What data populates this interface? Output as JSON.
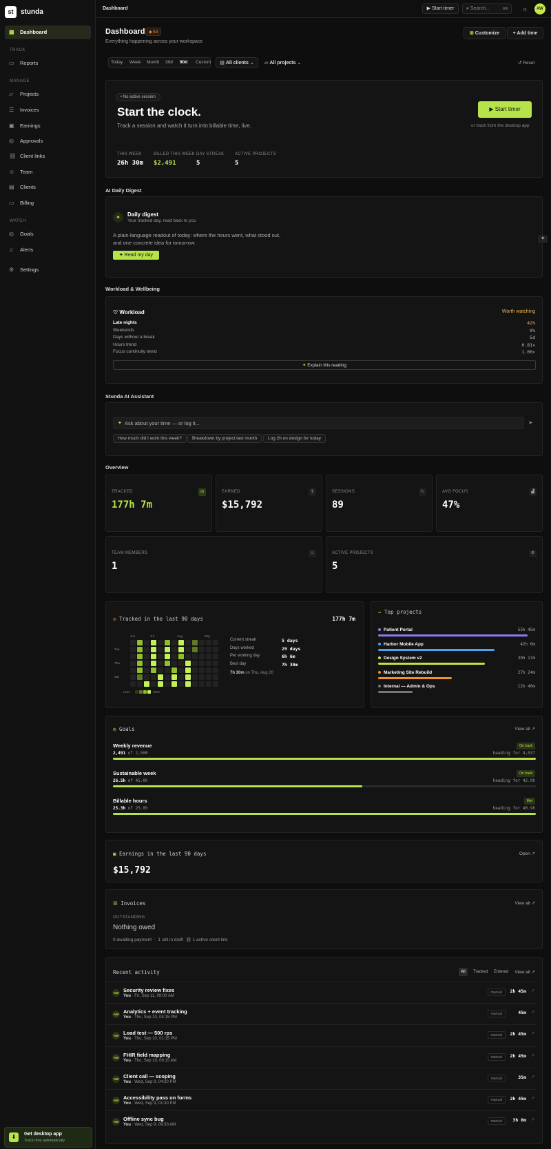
{
  "app": {
    "logo": "st",
    "name": "stunda"
  },
  "sidebar": {
    "dashboard": "Dashboard",
    "track_label": "TRACK",
    "reports": "Reports",
    "manage_label": "MANAGE",
    "projects": "Projects",
    "invoices": "Invoices",
    "earnings": "Earnings",
    "approvals": "Approvals",
    "client_links": "Client links",
    "team": "Team",
    "clients": "Clients",
    "billing": "Billing",
    "watch_label": "WATCH",
    "goals": "Goals",
    "alerts": "Alerts",
    "settings": "Settings",
    "desktop_title": "Get desktop app",
    "desktop_sub": "Track time automatically"
  },
  "topbar": {
    "crumb": "Dashboard",
    "start_timer": "Start timer",
    "search_placeholder": "Search...",
    "shortcut": "⌘K",
    "avatar": "AW"
  },
  "header": {
    "title": "Dashboard",
    "streak_badge": "5d",
    "subtitle": "Everything happening across your workspace",
    "customize": "Customize",
    "add_time": "Add time"
  },
  "filters": {
    "ranges": [
      "Today",
      "Week",
      "Month",
      "30d",
      "90d",
      "Custom"
    ],
    "active": "90d",
    "clients": "All clients",
    "projects": "All projects",
    "reset": "Reset"
  },
  "hero": {
    "badge": "No active session",
    "title": "Start the clock.",
    "desc": "Track a session and watch it turn into billable time, live.",
    "cta": "Start timer",
    "alt": "or track from the desktop app",
    "stats": [
      {
        "label": "THIS WEEK",
        "value": "26h 30m"
      },
      {
        "label": "BILLED THIS WEEK",
        "value": "$2,491"
      },
      {
        "label": "DAY STREAK",
        "value": "5"
      },
      {
        "label": "ACTIVE PROJECTS",
        "value": "5"
      }
    ]
  },
  "digest": {
    "section": "AI Daily Digest",
    "title": "Daily digest",
    "sub": "Your tracked day, read back to you",
    "desc": "A plain-language readout of today: where the hours went, what stood out, and one concrete idea for tomorrow.",
    "cta": "Read my day"
  },
  "wellbeing": {
    "section": "Workload & Wellbeing",
    "title": "Workload",
    "status": "Worth watching",
    "rows": [
      {
        "label": "Late nights",
        "value": "42%"
      },
      {
        "label": "Weekends",
        "value": "0%"
      },
      {
        "label": "Days without a break",
        "value": "5d"
      },
      {
        "label": "Hours trend",
        "value": "0.81×"
      },
      {
        "label": "Focus continuity trend",
        "value": "1.00×"
      }
    ],
    "explain": "Explain this reading"
  },
  "assistant": {
    "section": "Stunda AI Assistant",
    "placeholder": "Ask about your time — or log it...",
    "chips": [
      "How much did I work this week?",
      "Breakdown by project last month",
      "Log 2h on design for today"
    ]
  },
  "overview": {
    "section": "Overview",
    "stats": [
      {
        "label": "TRACKED",
        "value": "177h 7m",
        "icon": "clock-icon"
      },
      {
        "label": "EARNED",
        "value": "$15,792",
        "icon": "dollar-icon"
      },
      {
        "label": "SESSIONS",
        "value": "89",
        "icon": "refresh-icon"
      },
      {
        "label": "AVG FOCUS",
        "value": "47%",
        "icon": "signal-icon"
      },
      {
        "label": "TEAM MEMBERS",
        "value": "1",
        "icon": "users-icon"
      },
      {
        "label": "ACTIVE PROJECTS",
        "value": "5",
        "icon": "gear-icon"
      }
    ]
  },
  "tracked": {
    "title": "Tracked in the last 90 days",
    "total": "177h 7m",
    "months": [
      "Jun",
      "Jul",
      "Aug",
      "Sep"
    ],
    "days": [
      "Tue",
      "Thu",
      "Sat"
    ],
    "less": "Less",
    "more": "More",
    "stats": [
      {
        "label": "Current streak",
        "value": "5 days"
      },
      {
        "label": "Days worked",
        "value": "29 days"
      },
      {
        "label": "Per working day",
        "value": "6h 6m"
      },
      {
        "label": "Best day",
        "value": "7h 30m"
      }
    ],
    "best_value": "7h 30m",
    "best_date": "on Thu, Aug 20",
    "cells": [
      0,
      0,
      0,
      0,
      0,
      0,
      0,
      3,
      3,
      3,
      3,
      3,
      2,
      0,
      0,
      0,
      0,
      0,
      0,
      0,
      4,
      4,
      4,
      4,
      4,
      3,
      0,
      0,
      0,
      0,
      0,
      0,
      0,
      4,
      4,
      3,
      4,
      4,
      3,
      0,
      0,
      0,
      0,
      0,
      0,
      0,
      3,
      4,
      4,
      4,
      4,
      3,
      0,
      0,
      0,
      0,
      0,
      0,
      0,
      4,
      4,
      4,
      4,
      2,
      2,
      0,
      0,
      0,
      0,
      0,
      0,
      0,
      0,
      0,
      0,
      0,
      0,
      0,
      0,
      0,
      0,
      0,
      0,
      0,
      0,
      0,
      0,
      0,
      0,
      0,
      0,
      0,
      0,
      0,
      0,
      0,
      0,
      0,
      0,
      0,
      0,
      0,
      0,
      0,
      0,
      0,
      0,
      0,
      0,
      0,
      0,
      0,
      0,
      0,
      0,
      0,
      0,
      0,
      0,
      0,
      0,
      0,
      0,
      0,
      0,
      0,
      0,
      0,
      0,
      0,
      0,
      0,
      0
    ]
  },
  "top_projects": {
    "title": "Top projects",
    "items": [
      {
        "name": "Patient Portal",
        "hours": "55h 45m",
        "color": "#8b7cf6",
        "share": 0.95
      },
      {
        "name": "Harbor Mobile App",
        "hours": "42h 0m",
        "color": "#4aa3f0",
        "share": 0.74
      },
      {
        "name": "Design System v2",
        "hours": "39h 17m",
        "color": "#c8e03f",
        "share": 0.68
      },
      {
        "name": "Marketing Site Rebuild",
        "hours": "27h 24m",
        "color": "#f0902d",
        "share": 0.47
      },
      {
        "name": "Internal — Admin & Ops",
        "hours": "12h 40m",
        "color": "#777777",
        "share": 0.22
      }
    ]
  },
  "goals": {
    "title": "Goals",
    "view_all": "View all ↗",
    "items": [
      {
        "name": "Weekly revenue",
        "status": "On track",
        "current": "2,491",
        "target": "of 2,500",
        "heading": "heading for 4,037",
        "fill": 1.0
      },
      {
        "name": "Sustainable week",
        "status": "On track",
        "current": "26.5h",
        "target": "of 45.0h",
        "heading": "heading for 42.9h",
        "fill": 0.59
      },
      {
        "name": "Billable hours",
        "status": "Met",
        "current": "25.3h",
        "target": "of 25.0h",
        "heading": "heading for 40.9h",
        "fill": 1.0
      }
    ]
  },
  "earnings": {
    "title": "Earnings in the last 90 days",
    "open": "Open ↗",
    "value": "$15,792"
  },
  "invoices": {
    "title": "Invoices",
    "view_all": "View all ↗",
    "outstanding_label": "OUTSTANDING",
    "outstanding": "Nothing owed",
    "meta1": "0 awaiting payment",
    "meta2": "1 still in draft",
    "meta3": "1 active client link"
  },
  "activity": {
    "title": "Recent activity",
    "tabs": [
      "All",
      "Tracked",
      "Entered"
    ],
    "view_all": "View all ↗",
    "items": [
      {
        "title": "Security review fixes",
        "who": "You",
        "when": "Fri, Sep 11, 09:00 AM",
        "type": "manual",
        "dur": "2h 45m"
      },
      {
        "title": "Analytics + event tracking",
        "who": "You",
        "when": "Thu, Sep 10, 04:15 PM",
        "type": "manual",
        "dur": "45m"
      },
      {
        "title": "Load test — 500 rps",
        "who": "You",
        "when": "Thu, Sep 10, 01:15 PM",
        "type": "manual",
        "dur": "2h 45m"
      },
      {
        "title": "FHIR field mapping",
        "who": "You",
        "when": "Thu, Sep 10, 09:15 AM",
        "type": "manual",
        "dur": "2h 45m"
      },
      {
        "title": "Client call — scoping",
        "who": "You",
        "when": "Wed, Sep 9, 04:30 PM",
        "type": "manual",
        "dur": "35m"
      },
      {
        "title": "Accessibility pass on forms",
        "who": "You",
        "when": "Wed, Sep 9, 01:30 PM",
        "type": "manual",
        "dur": "2h 45m"
      },
      {
        "title": "Offline sync bug",
        "who": "You",
        "when": "Wed, Sep 9, 09:30 AM",
        "type": "manual",
        "dur": "3h 0m"
      }
    ]
  },
  "colors": {
    "accent": "#b7e34a",
    "warn": "#f0b34a",
    "bg": "#0e0e0e"
  }
}
